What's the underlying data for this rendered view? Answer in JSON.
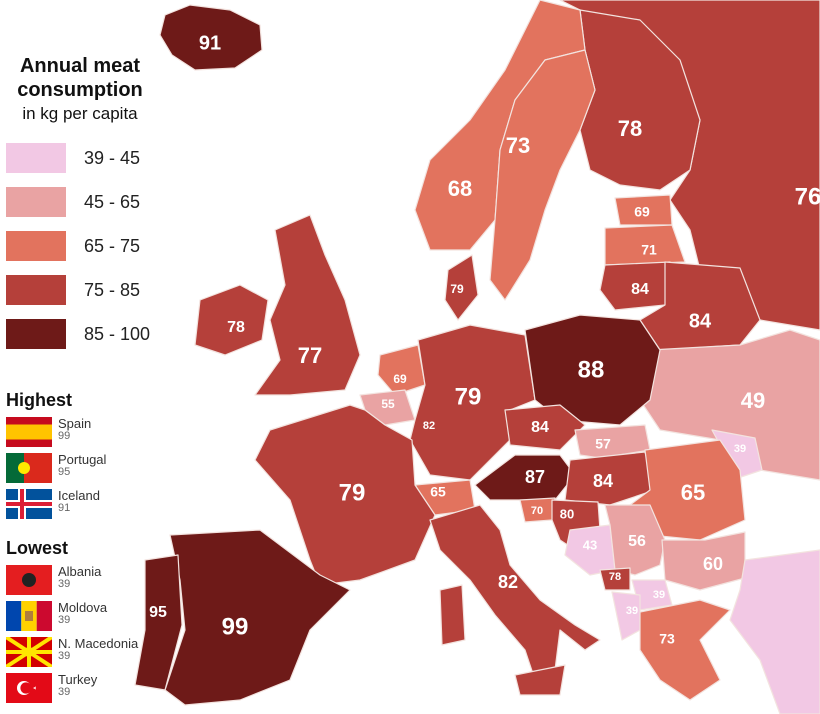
{
  "legend": {
    "title_line1": "Annual meat",
    "title_line2": "consumption",
    "subtitle": "in kg per capita",
    "bins": [
      {
        "label": "39 - 45",
        "color": "#f2c8e4"
      },
      {
        "label": "45 - 65",
        "color": "#e9a3a3"
      },
      {
        "label": "65 - 75",
        "color": "#e2735e"
      },
      {
        "label": "75 - 85",
        "color": "#b5403a"
      },
      {
        "label": "85 - 100",
        "color": "#6e1a18"
      }
    ]
  },
  "highest": {
    "title": "Highest",
    "items": [
      {
        "country": "Spain",
        "value": "99"
      },
      {
        "country": "Portugal",
        "value": "95"
      },
      {
        "country": "Iceland",
        "value": "91"
      }
    ]
  },
  "lowest": {
    "title": "Lowest",
    "items": [
      {
        "country": "Albania",
        "value": "39"
      },
      {
        "country": "Moldova",
        "value": "39"
      },
      {
        "country": "N. Macedonia",
        "value": "39"
      },
      {
        "country": "Turkey",
        "value": "39"
      }
    ]
  },
  "regions": {
    "iceland": "91",
    "norway": "68",
    "sweden": "73",
    "finland": "78",
    "russia": "76",
    "estonia": "69",
    "latvia": "71",
    "lithuania": "84",
    "belarus": "84",
    "ukraine": "49",
    "moldova": "39",
    "denmark": "79",
    "ireland": "78",
    "uk": "77",
    "netherlands": "69",
    "belgium": "55",
    "luxembourg": "82",
    "germany": "79",
    "poland": "88",
    "czechia": "84",
    "slovakia": "57",
    "austria": "87",
    "hungary": "84",
    "switzerland": "65",
    "slovenia": "70",
    "croatia": "80",
    "bosnia": "43",
    "serbia": "56",
    "romania": "65",
    "bulgaria": "60",
    "montenegro": "78",
    "kosovo_north_macedonia": "39",
    "albania": "39",
    "greece": "73",
    "france": "79",
    "italy": "82",
    "spain": "99",
    "portugal": "95"
  }
}
